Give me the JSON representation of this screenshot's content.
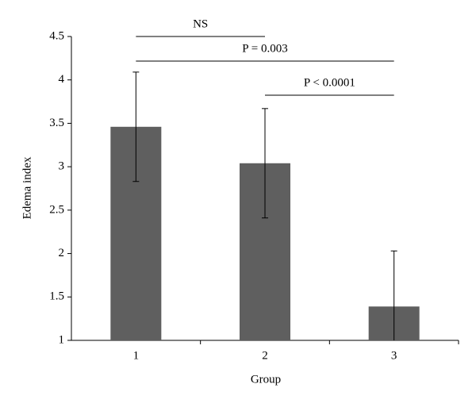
{
  "chart_data": {
    "type": "bar",
    "x_label": "Group",
    "y_label": "Edema index",
    "categories": [
      "1",
      "2",
      "3"
    ],
    "values": [
      3.46,
      3.04,
      1.39
    ],
    "errors": [
      0.63,
      0.63,
      0.64
    ],
    "color": "#5f5f5f",
    "ylim": [
      1,
      4.5
    ],
    "yticks": [
      1,
      1.5,
      2,
      2.5,
      3,
      3.5,
      4,
      4.5
    ],
    "annotations": [
      "NS",
      "P = 0.003",
      "P < 0.0001"
    ]
  }
}
